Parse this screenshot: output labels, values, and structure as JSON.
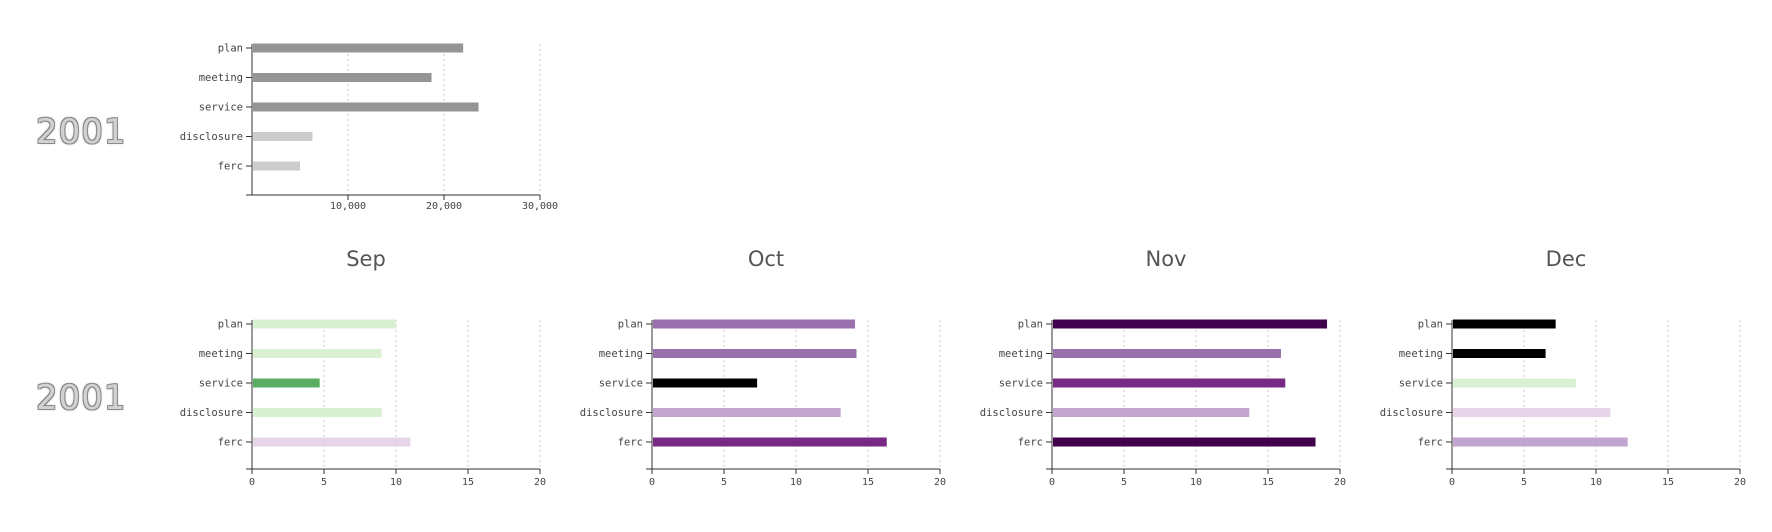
{
  "rows": [
    {
      "year_label": "2001"
    },
    {
      "year_label": "2001"
    }
  ],
  "chart_data": [
    {
      "type": "bar",
      "orientation": "horizontal",
      "title": "",
      "categories": [
        "plan",
        "meeting",
        "service",
        "disclosure",
        "ferc"
      ],
      "values": [
        22000,
        18700,
        23600,
        6300,
        5000
      ],
      "colors": [
        "#959595",
        "#959595",
        "#959595",
        "#cccccc",
        "#cccccc"
      ],
      "xlim": [
        0,
        30000
      ],
      "xticks": [
        10000,
        20000,
        30000
      ],
      "xtick_labels": [
        "10,000",
        "20,000",
        "30,000"
      ],
      "grid": "vertical dotted"
    },
    {
      "type": "bar",
      "orientation": "horizontal",
      "title": "Sep",
      "categories": [
        "plan",
        "meeting",
        "service",
        "disclosure",
        "ferc"
      ],
      "values": [
        10,
        9,
        4.7,
        9,
        11
      ],
      "colors": [
        "#d9f0d3",
        "#d9f0d3",
        "#5aae61",
        "#d9f0d3",
        "#e7d4e8"
      ],
      "xlim": [
        0,
        20
      ],
      "xticks": [
        0,
        5,
        10,
        15,
        20
      ],
      "xtick_labels": [
        "0",
        "5",
        "10",
        "15",
        "20"
      ],
      "grid": "vertical dotted"
    },
    {
      "type": "bar",
      "orientation": "horizontal",
      "title": "Oct",
      "categories": [
        "plan",
        "meeting",
        "service",
        "disclosure",
        "ferc"
      ],
      "values": [
        14.1,
        14.2,
        7.3,
        13.1,
        16.3
      ],
      "colors": [
        "#9970ab",
        "#9970ab",
        "#000000",
        "#c2a5cf",
        "#762a83"
      ],
      "xlim": [
        0,
        20
      ],
      "xticks": [
        0,
        5,
        10,
        15,
        20
      ],
      "xtick_labels": [
        "0",
        "5",
        "10",
        "15",
        "20"
      ],
      "grid": "vertical dotted"
    },
    {
      "type": "bar",
      "orientation": "horizontal",
      "title": "Nov",
      "categories": [
        "plan",
        "meeting",
        "service",
        "disclosure",
        "ferc"
      ],
      "values": [
        19.1,
        15.9,
        16.2,
        13.7,
        18.3
      ],
      "colors": [
        "#40004b",
        "#9970ab",
        "#762a83",
        "#c2a5cf",
        "#40004b"
      ],
      "xlim": [
        0,
        20
      ],
      "xticks": [
        0,
        5,
        10,
        15,
        20
      ],
      "xtick_labels": [
        "0",
        "5",
        "10",
        "15",
        "20"
      ],
      "grid": "vertical dotted"
    },
    {
      "type": "bar",
      "orientation": "horizontal",
      "title": "Dec",
      "categories": [
        "plan",
        "meeting",
        "service",
        "disclosure",
        "ferc"
      ],
      "values": [
        7.2,
        6.5,
        8.6,
        11,
        12.2
      ],
      "colors": [
        "#000000",
        "#000000",
        "#d9f0d3",
        "#e7d4e8",
        "#c2a5cf"
      ],
      "xlim": [
        0,
        20
      ],
      "xticks": [
        0,
        5,
        10,
        15,
        20
      ],
      "xtick_labels": [
        "0",
        "5",
        "10",
        "15",
        "20"
      ],
      "grid": "vertical dotted"
    }
  ]
}
